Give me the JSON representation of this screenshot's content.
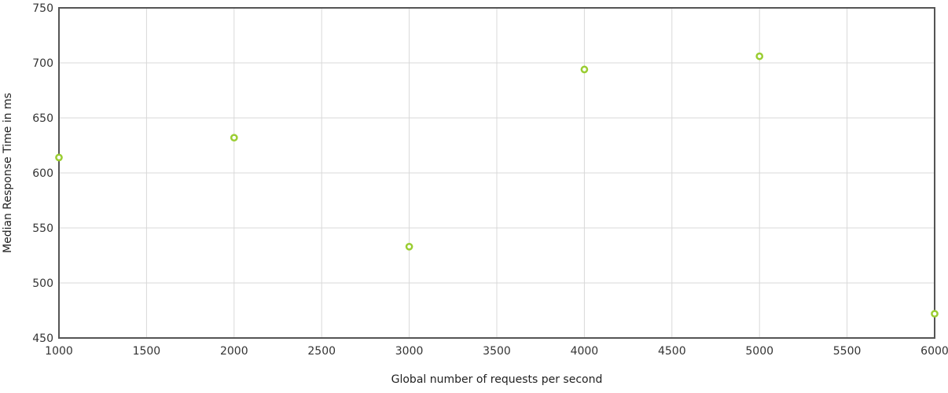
{
  "chart_data": {
    "type": "scatter",
    "xlabel": "Global number of requests per second",
    "ylabel": "Median Response Time in ms",
    "xlim": [
      1000,
      6000
    ],
    "ylim": [
      450,
      750
    ],
    "xticks": [
      1000,
      1500,
      2000,
      2500,
      3000,
      3500,
      4000,
      4500,
      5000,
      5500,
      6000
    ],
    "yticks": [
      450,
      500,
      550,
      600,
      650,
      700,
      750
    ],
    "grid": true,
    "point_color": "#9acd32",
    "series": [
      {
        "x": [
          1000,
          2000,
          3000,
          4000,
          5000,
          6000
        ],
        "y": [
          614,
          632,
          533,
          694,
          706,
          472
        ]
      }
    ]
  }
}
